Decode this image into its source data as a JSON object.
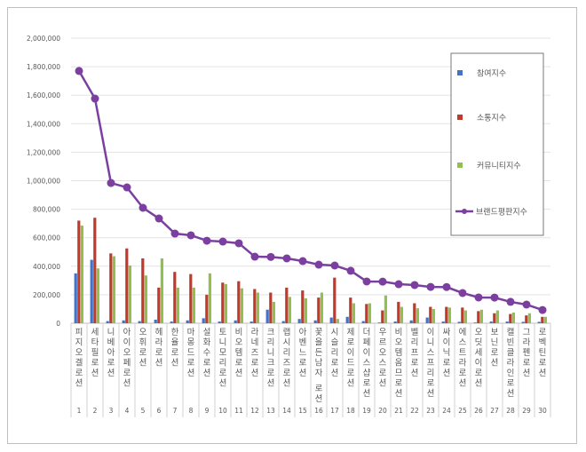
{
  "chart_data": {
    "type": "bar",
    "title": "",
    "xlabel": "",
    "ylabel": "",
    "ylim": [
      0,
      2000000
    ],
    "yticks": [
      "0",
      "200,000",
      "400,000",
      "600,000",
      "800,000",
      "1,000,000",
      "1,200,000",
      "1,400,000",
      "1,600,000",
      "1,800,000",
      "2,000,000"
    ],
    "grid": true,
    "legend_position": "right",
    "categories": [
      "피지오겔로션",
      "세타필로션",
      "니베아로션",
      "아이오페로션",
      "오휘로션",
      "헤라로션",
      "한율로션",
      "마몽드로션",
      "설화수로션",
      "토니모리로션",
      "비오템로션",
      "라네즈로션",
      "크리니크로션",
      "랩시리즈로션",
      "아벤느로션",
      "꽃을든남자 로션",
      "시슬리로션",
      "제로이드로션",
      "더페이스샵로션",
      "우르오스로션",
      "비오템옴므로션",
      "벨리프로션",
      "이니스프리로션",
      "싸이닉로션",
      "에스트라로션",
      "오딧세이로션",
      "보닌로션",
      "캘빈클라인로션",
      "그라펜로션",
      "로벡틴로션"
    ],
    "ranks": [
      "1",
      "2",
      "3",
      "4",
      "5",
      "6",
      "7",
      "8",
      "9",
      "10",
      "11",
      "12",
      "13",
      "14",
      "15",
      "16",
      "17",
      "18",
      "19",
      "20",
      "21",
      "22",
      "23",
      "24",
      "25",
      "26",
      "27",
      "28",
      "29",
      "30"
    ],
    "series": [
      {
        "name": "참여지수",
        "type": "bar",
        "color": "#4472c4",
        "values": [
          350000,
          445000,
          15000,
          20000,
          15000,
          25000,
          12000,
          20000,
          35000,
          12000,
          20000,
          12000,
          95000,
          15000,
          30000,
          20000,
          40000,
          45000,
          15000,
          5000,
          12000,
          20000,
          40000,
          12000,
          10000,
          5000,
          12000,
          12000,
          10000,
          10000
        ]
      },
      {
        "name": "소통지수",
        "type": "bar",
        "color": "#c0392b",
        "values": [
          720000,
          740000,
          490000,
          525000,
          455000,
          250000,
          360000,
          345000,
          200000,
          285000,
          295000,
          240000,
          215000,
          250000,
          230000,
          180000,
          320000,
          180000,
          135000,
          90000,
          150000,
          140000,
          115000,
          115000,
          110000,
          85000,
          70000,
          65000,
          55000,
          45000
        ]
      },
      {
        "name": "커뮤니티지수",
        "type": "bar",
        "color": "#92c050",
        "values": [
          685000,
          385000,
          470000,
          405000,
          335000,
          455000,
          250000,
          250000,
          350000,
          275000,
          245000,
          215000,
          150000,
          185000,
          175000,
          215000,
          30000,
          140000,
          140000,
          195000,
          115000,
          105000,
          100000,
          110000,
          90000,
          95000,
          90000,
          75000,
          70000,
          45000
        ]
      },
      {
        "name": "브랜드평판지수",
        "type": "line",
        "color": "#7b3fa0",
        "values": [
          1770000,
          1576000,
          984000,
          953000,
          810000,
          735000,
          629000,
          617000,
          579000,
          573000,
          561000,
          467000,
          465000,
          455000,
          436000,
          411000,
          405000,
          368000,
          293000,
          292000,
          274000,
          268000,
          255000,
          254000,
          212000,
          181000,
          180000,
          150000,
          131000,
          93000
        ]
      }
    ]
  }
}
